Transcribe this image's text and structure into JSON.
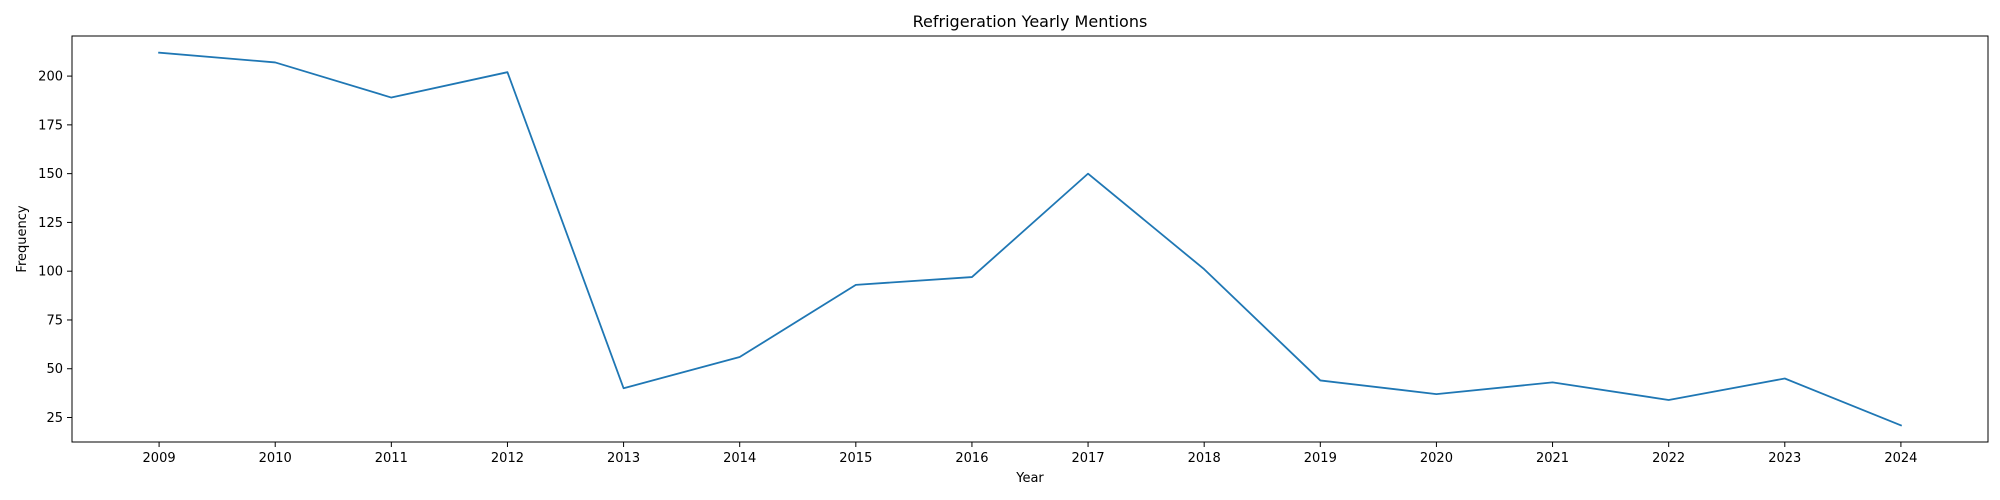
{
  "chart_data": {
    "type": "line",
    "title": "Refrigeration Yearly Mentions",
    "xlabel": "Year",
    "ylabel": "Frequency",
    "x": [
      "2009",
      "2010",
      "2011",
      "2012",
      "2013",
      "2014",
      "2015",
      "2016",
      "2017",
      "2018",
      "2019",
      "2020",
      "2021",
      "2022",
      "2023",
      "2024"
    ],
    "series": [
      {
        "values": [
          212,
          207,
          189,
          202,
          40,
          56,
          93,
          97,
          150,
          101,
          44,
          37,
          43,
          34,
          45,
          21
        ]
      }
    ],
    "yticks": [
      25,
      50,
      75,
      100,
      125,
      150,
      175,
      200
    ],
    "ylim": [
      12.45,
      220.55
    ],
    "grid": false,
    "line_color": "#1f77b4"
  }
}
